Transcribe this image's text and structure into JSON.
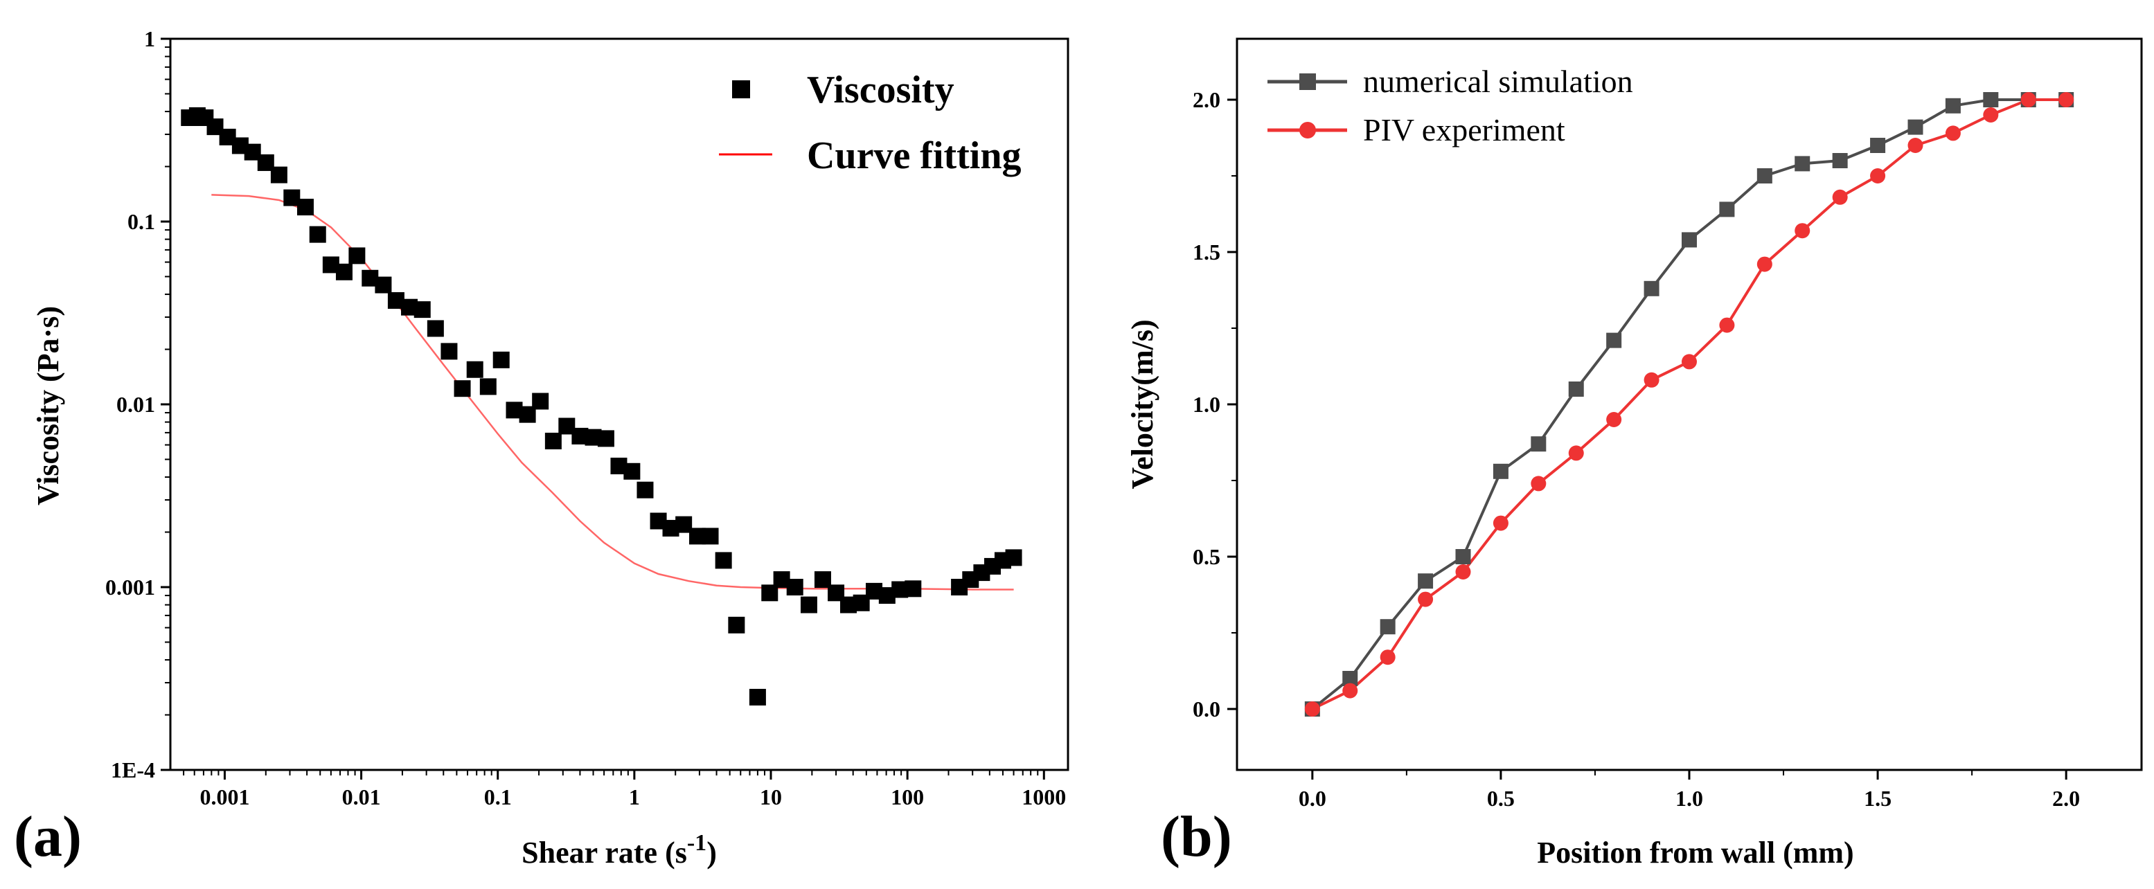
{
  "chart_data": [
    {
      "panel_label": "(a)",
      "type": "scatter",
      "x_scale": "log",
      "y_scale": "log",
      "xlabel": "Shear rate (s",
      "xlabel_sup": "-1",
      "xlabel_end": ")",
      "ylabel": "Viscosity (Pa·s)",
      "xlim": [
        0.0004,
        1500
      ],
      "ylim": [
        0.0001,
        1
      ],
      "x_ticks": [
        0.001,
        0.01,
        0.1,
        1,
        10,
        100,
        1000
      ],
      "x_tick_labels": [
        "0.001",
        "0.01",
        "0.1",
        "1",
        "10",
        "100",
        "1000"
      ],
      "y_ticks": [
        0.0001,
        0.001,
        0.01,
        0.1,
        1
      ],
      "y_tick_labels": [
        "1E-4",
        "0.001",
        "0.01",
        "0.1",
        "1"
      ],
      "legend_position": "top-right",
      "series": [
        {
          "name": "Viscosity",
          "kind": "markers",
          "marker": "square",
          "color": "#000000",
          "x": [
            0.00055,
            0.00063,
            0.00072,
            0.00085,
            0.00105,
            0.0013,
            0.0016,
            0.002,
            0.0025,
            0.0031,
            0.0039,
            0.0048,
            0.006,
            0.0075,
            0.0093,
            0.0116,
            0.0145,
            0.018,
            0.0225,
            0.028,
            0.035,
            0.044,
            0.055,
            0.068,
            0.085,
            0.106,
            0.132,
            0.165,
            0.205,
            0.255,
            0.32,
            0.4,
            0.5,
            0.62,
            0.77,
            0.96,
            1.2,
            1.5,
            1.85,
            2.3,
            2.9,
            3.6,
            4.5,
            5.6,
            8.0,
            9.8,
            12.0,
            15.0,
            19.0,
            24.0,
            30.0,
            37.0,
            46.0,
            57.0,
            71.0,
            88.0,
            110.0,
            240.0,
            290.0,
            350.0,
            420.0,
            500.0,
            600.0
          ],
          "y": [
            0.37,
            0.38,
            0.37,
            0.33,
            0.29,
            0.26,
            0.24,
            0.21,
            0.18,
            0.135,
            0.12,
            0.085,
            0.058,
            0.053,
            0.065,
            0.049,
            0.045,
            0.037,
            0.034,
            0.033,
            0.026,
            0.0195,
            0.0122,
            0.0155,
            0.0125,
            0.0175,
            0.0093,
            0.0088,
            0.0104,
            0.0063,
            0.0076,
            0.0067,
            0.0066,
            0.0065,
            0.0046,
            0.0043,
            0.0034,
            0.0023,
            0.0021,
            0.0022,
            0.0019,
            0.0019,
            0.0014,
            0.00062,
            0.00025,
            0.00093,
            0.0011,
            0.001,
            0.0008,
            0.0011,
            0.00093,
            0.0008,
            0.00082,
            0.00095,
            0.0009,
            0.00097,
            0.00098,
            0.001,
            0.0011,
            0.0012,
            0.0013,
            0.0014,
            0.00145
          ]
        },
        {
          "name": "Curve fitting",
          "kind": "line",
          "color": "#ff0000",
          "x": [
            0.0008,
            0.0015,
            0.0025,
            0.004,
            0.006,
            0.01,
            0.015,
            0.025,
            0.04,
            0.06,
            0.1,
            0.15,
            0.25,
            0.4,
            0.6,
            1,
            1.5,
            2.5,
            4,
            6,
            10,
            20,
            50,
            100,
            300,
            600
          ],
          "y": [
            0.14,
            0.138,
            0.131,
            0.115,
            0.093,
            0.063,
            0.043,
            0.026,
            0.0165,
            0.0112,
            0.0069,
            0.0048,
            0.0033,
            0.0023,
            0.00175,
            0.00135,
            0.00118,
            0.00108,
            0.00102,
            0.001,
            0.00099,
            0.00098,
            0.00098,
            0.00098,
            0.00097,
            0.00097
          ]
        }
      ]
    },
    {
      "panel_label": "(b)",
      "type": "line",
      "xlabel": "Position from wall (mm)",
      "ylabel": "Velocity(m/s)",
      "xlim": [
        -0.2,
        2.2
      ],
      "ylim": [
        -0.2,
        2.2
      ],
      "x_ticks": [
        0.0,
        0.5,
        1.0,
        1.5,
        2.0
      ],
      "x_tick_labels": [
        "0.0",
        "0.5",
        "1.0",
        "1.5",
        "2.0"
      ],
      "y_ticks": [
        0.0,
        0.5,
        1.0,
        1.5,
        2.0
      ],
      "y_tick_labels": [
        "0.0",
        "0.5",
        "1.0",
        "1.5",
        "2.0"
      ],
      "legend_position": "top-left",
      "series": [
        {
          "name": "numerical simulation",
          "marker": "square",
          "color": "#4d4d4d",
          "x": [
            0.0,
            0.1,
            0.2,
            0.3,
            0.4,
            0.5,
            0.6,
            0.7,
            0.8,
            0.9,
            1.0,
            1.1,
            1.2,
            1.3,
            1.4,
            1.5,
            1.6,
            1.7,
            1.8,
            1.9,
            2.0
          ],
          "y": [
            0.0,
            0.1,
            0.27,
            0.42,
            0.5,
            0.78,
            0.87,
            1.05,
            1.21,
            1.38,
            1.54,
            1.64,
            1.75,
            1.79,
            1.8,
            1.85,
            1.91,
            1.98,
            2.0,
            2.0,
            2.0
          ]
        },
        {
          "name": "PIV experiment",
          "marker": "circle",
          "color": "#ee3333",
          "x": [
            0.0,
            0.1,
            0.2,
            0.3,
            0.4,
            0.5,
            0.6,
            0.7,
            0.8,
            0.9,
            1.0,
            1.1,
            1.2,
            1.3,
            1.4,
            1.5,
            1.6,
            1.7,
            1.8,
            1.9,
            2.0
          ],
          "y": [
            0.0,
            0.06,
            0.17,
            0.36,
            0.45,
            0.61,
            0.74,
            0.84,
            0.95,
            1.08,
            1.14,
            1.26,
            1.46,
            1.57,
            1.68,
            1.75,
            1.85,
            1.89,
            1.95,
            2.0,
            2.0
          ]
        }
      ]
    }
  ]
}
